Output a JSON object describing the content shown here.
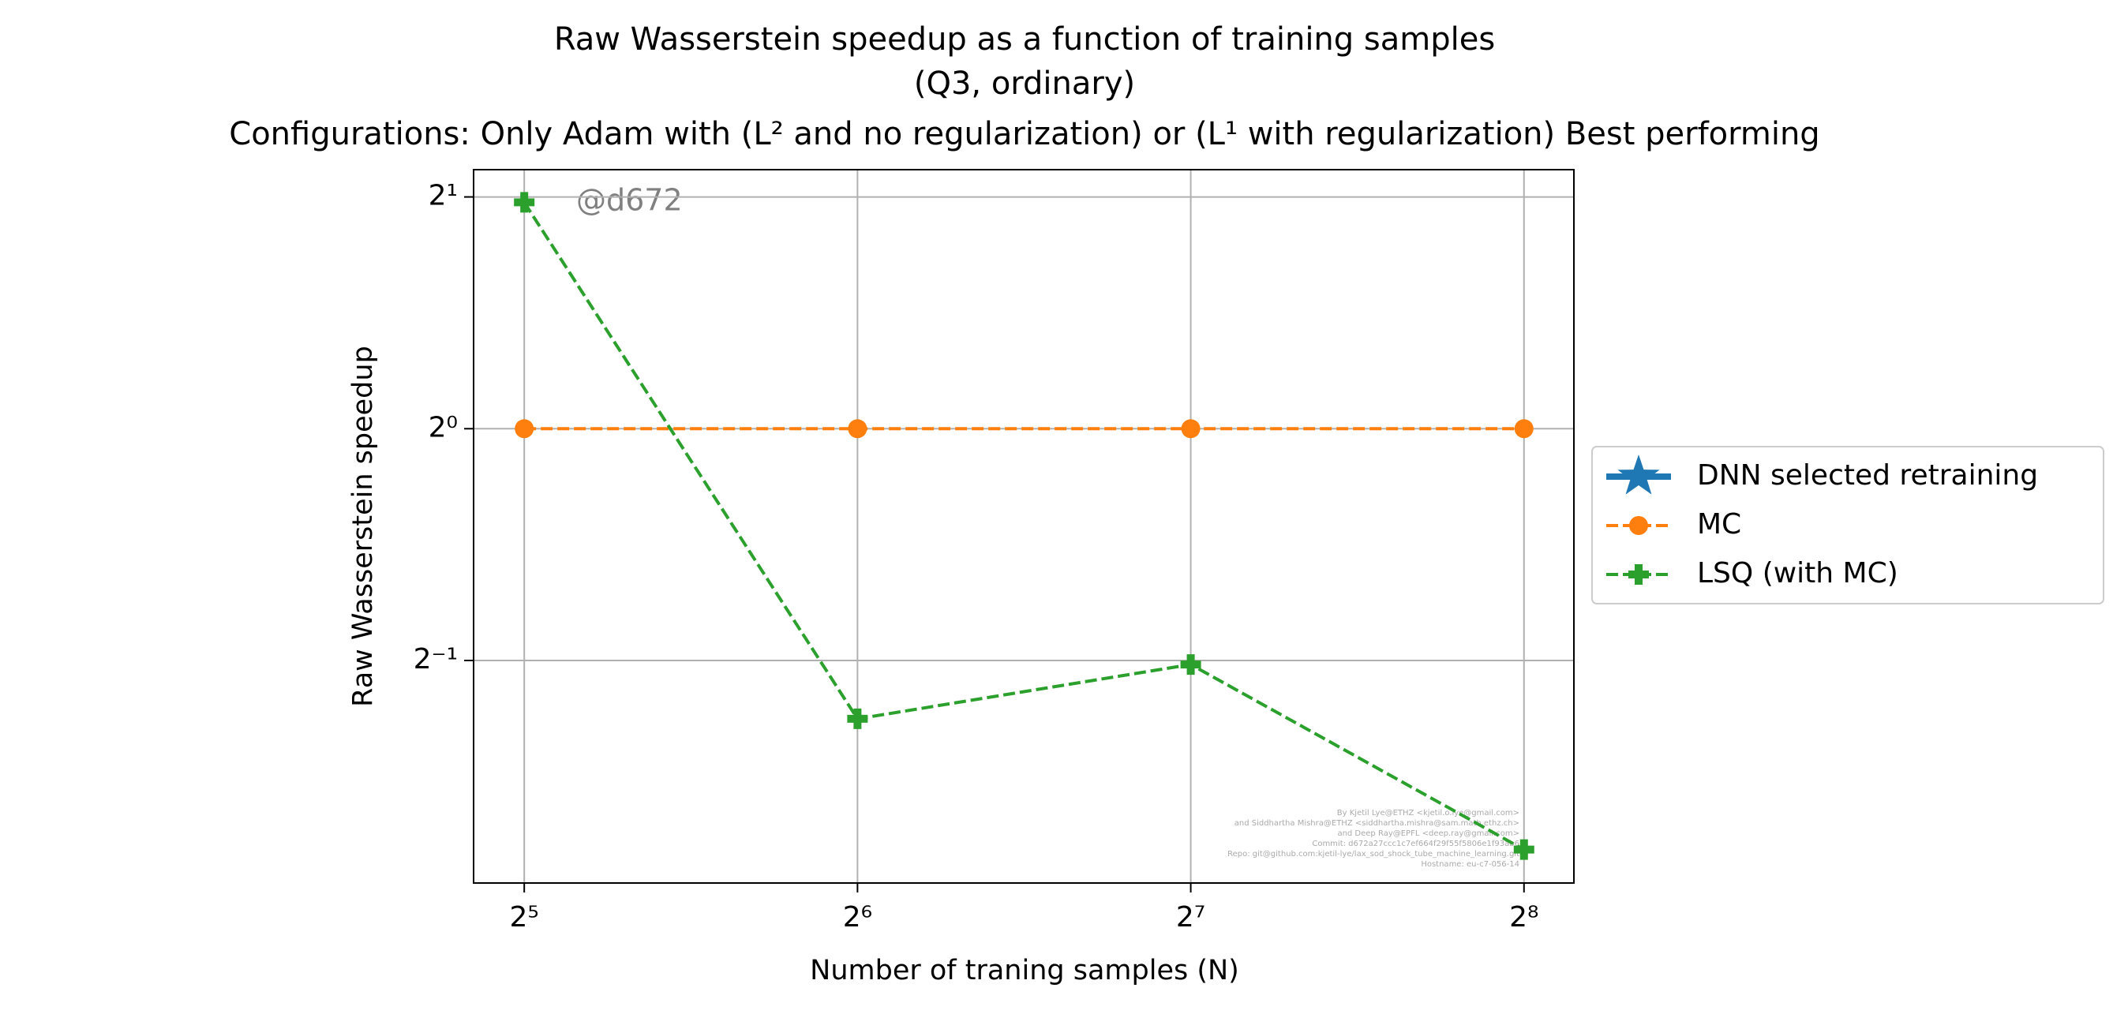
{
  "chart_data": {
    "type": "line",
    "title": [
      "Raw Wasserstein speedup as a function of training samples",
      "(Q3, ordinary)",
      "Configurations: Only Adam with (L² and no regularization) or (L¹ with regularization) Best performing"
    ],
    "x_label": "Number of traning samples (N)",
    "y_label": "Raw Wasserstein speedup",
    "x": [
      32,
      64,
      128,
      256
    ],
    "series": [
      {
        "name": "DNN selected retraining",
        "color": "#1f77b4",
        "marker": "star",
        "linestyle": "solid",
        "values": [
          null,
          null,
          null,
          null
        ]
      },
      {
        "name": "MC",
        "color": "#ff7f0e",
        "marker": "circle",
        "linestyle": "dashed",
        "values": [
          1,
          1,
          1,
          1
        ]
      },
      {
        "name": "LSQ (with MC)",
        "color": "#2ca02c",
        "marker": "plus",
        "linestyle": "dashed",
        "values": [
          1.968,
          0.42,
          0.494,
          0.284
        ]
      }
    ],
    "xscale": "log",
    "yscale": "log",
    "log_base": 2,
    "xlim": [
      28.8,
      284
    ],
    "ylim": [
      0.257,
      2.17
    ],
    "xticks": [
      {
        "value": 32,
        "label": "2⁵"
      },
      {
        "value": 64,
        "label": "2⁶"
      },
      {
        "value": 128,
        "label": "2⁷"
      },
      {
        "value": 256,
        "label": "2⁸"
      }
    ],
    "yticks": [
      {
        "value": 0.5,
        "label": "2⁻¹"
      },
      {
        "value": 1,
        "label": "2⁰"
      },
      {
        "value": 2,
        "label": "2¹"
      }
    ],
    "grid": true,
    "legend": "outside right",
    "annotation": "@d672",
    "watermark": [
      "By Kjetil Lye@ETHZ <kjetil.o.lye@gmail.com>",
      "and Siddhartha Mishra@ETHZ <siddhartha.mishra@sam.math.ethz.ch>",
      "and Deep Ray@EPFL <deep.ray@gmail.com>",
      "Commit: d672a27ccc1c7ef664f29f55f5806e1f93ab6",
      "Repo: git@github.com:kjetil-lye/lax_sod_shock_tube_machine_learning.git",
      "Hostname: eu-c7-056-14"
    ]
  }
}
